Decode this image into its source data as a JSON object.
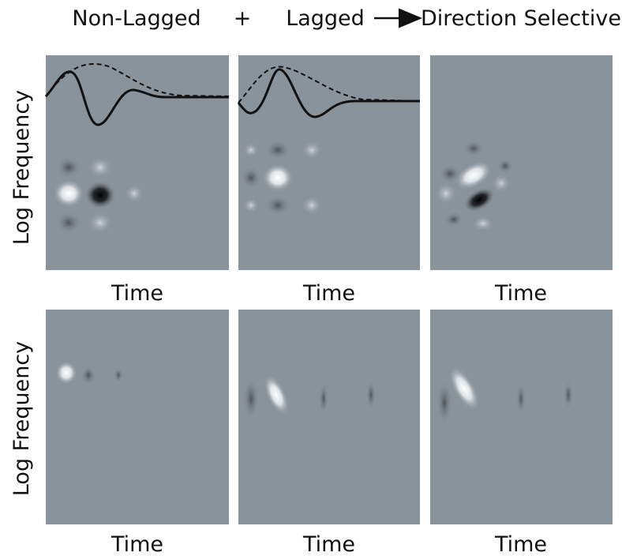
{
  "header": {
    "items": [
      "Non-Lagged",
      "+",
      "Lagged",
      "Direction Selective"
    ]
  },
  "rows": [
    {
      "y_label": "Log Frequency",
      "panels": [
        {
          "x_label": "Time"
        },
        {
          "x_label": "Time"
        },
        {
          "x_label": "Time"
        }
      ]
    },
    {
      "y_label": "Log Frequency",
      "panels": [
        {
          "x_label": "Time"
        },
        {
          "x_label": "Time"
        },
        {
          "x_label": "Time"
        }
      ]
    }
  ]
}
